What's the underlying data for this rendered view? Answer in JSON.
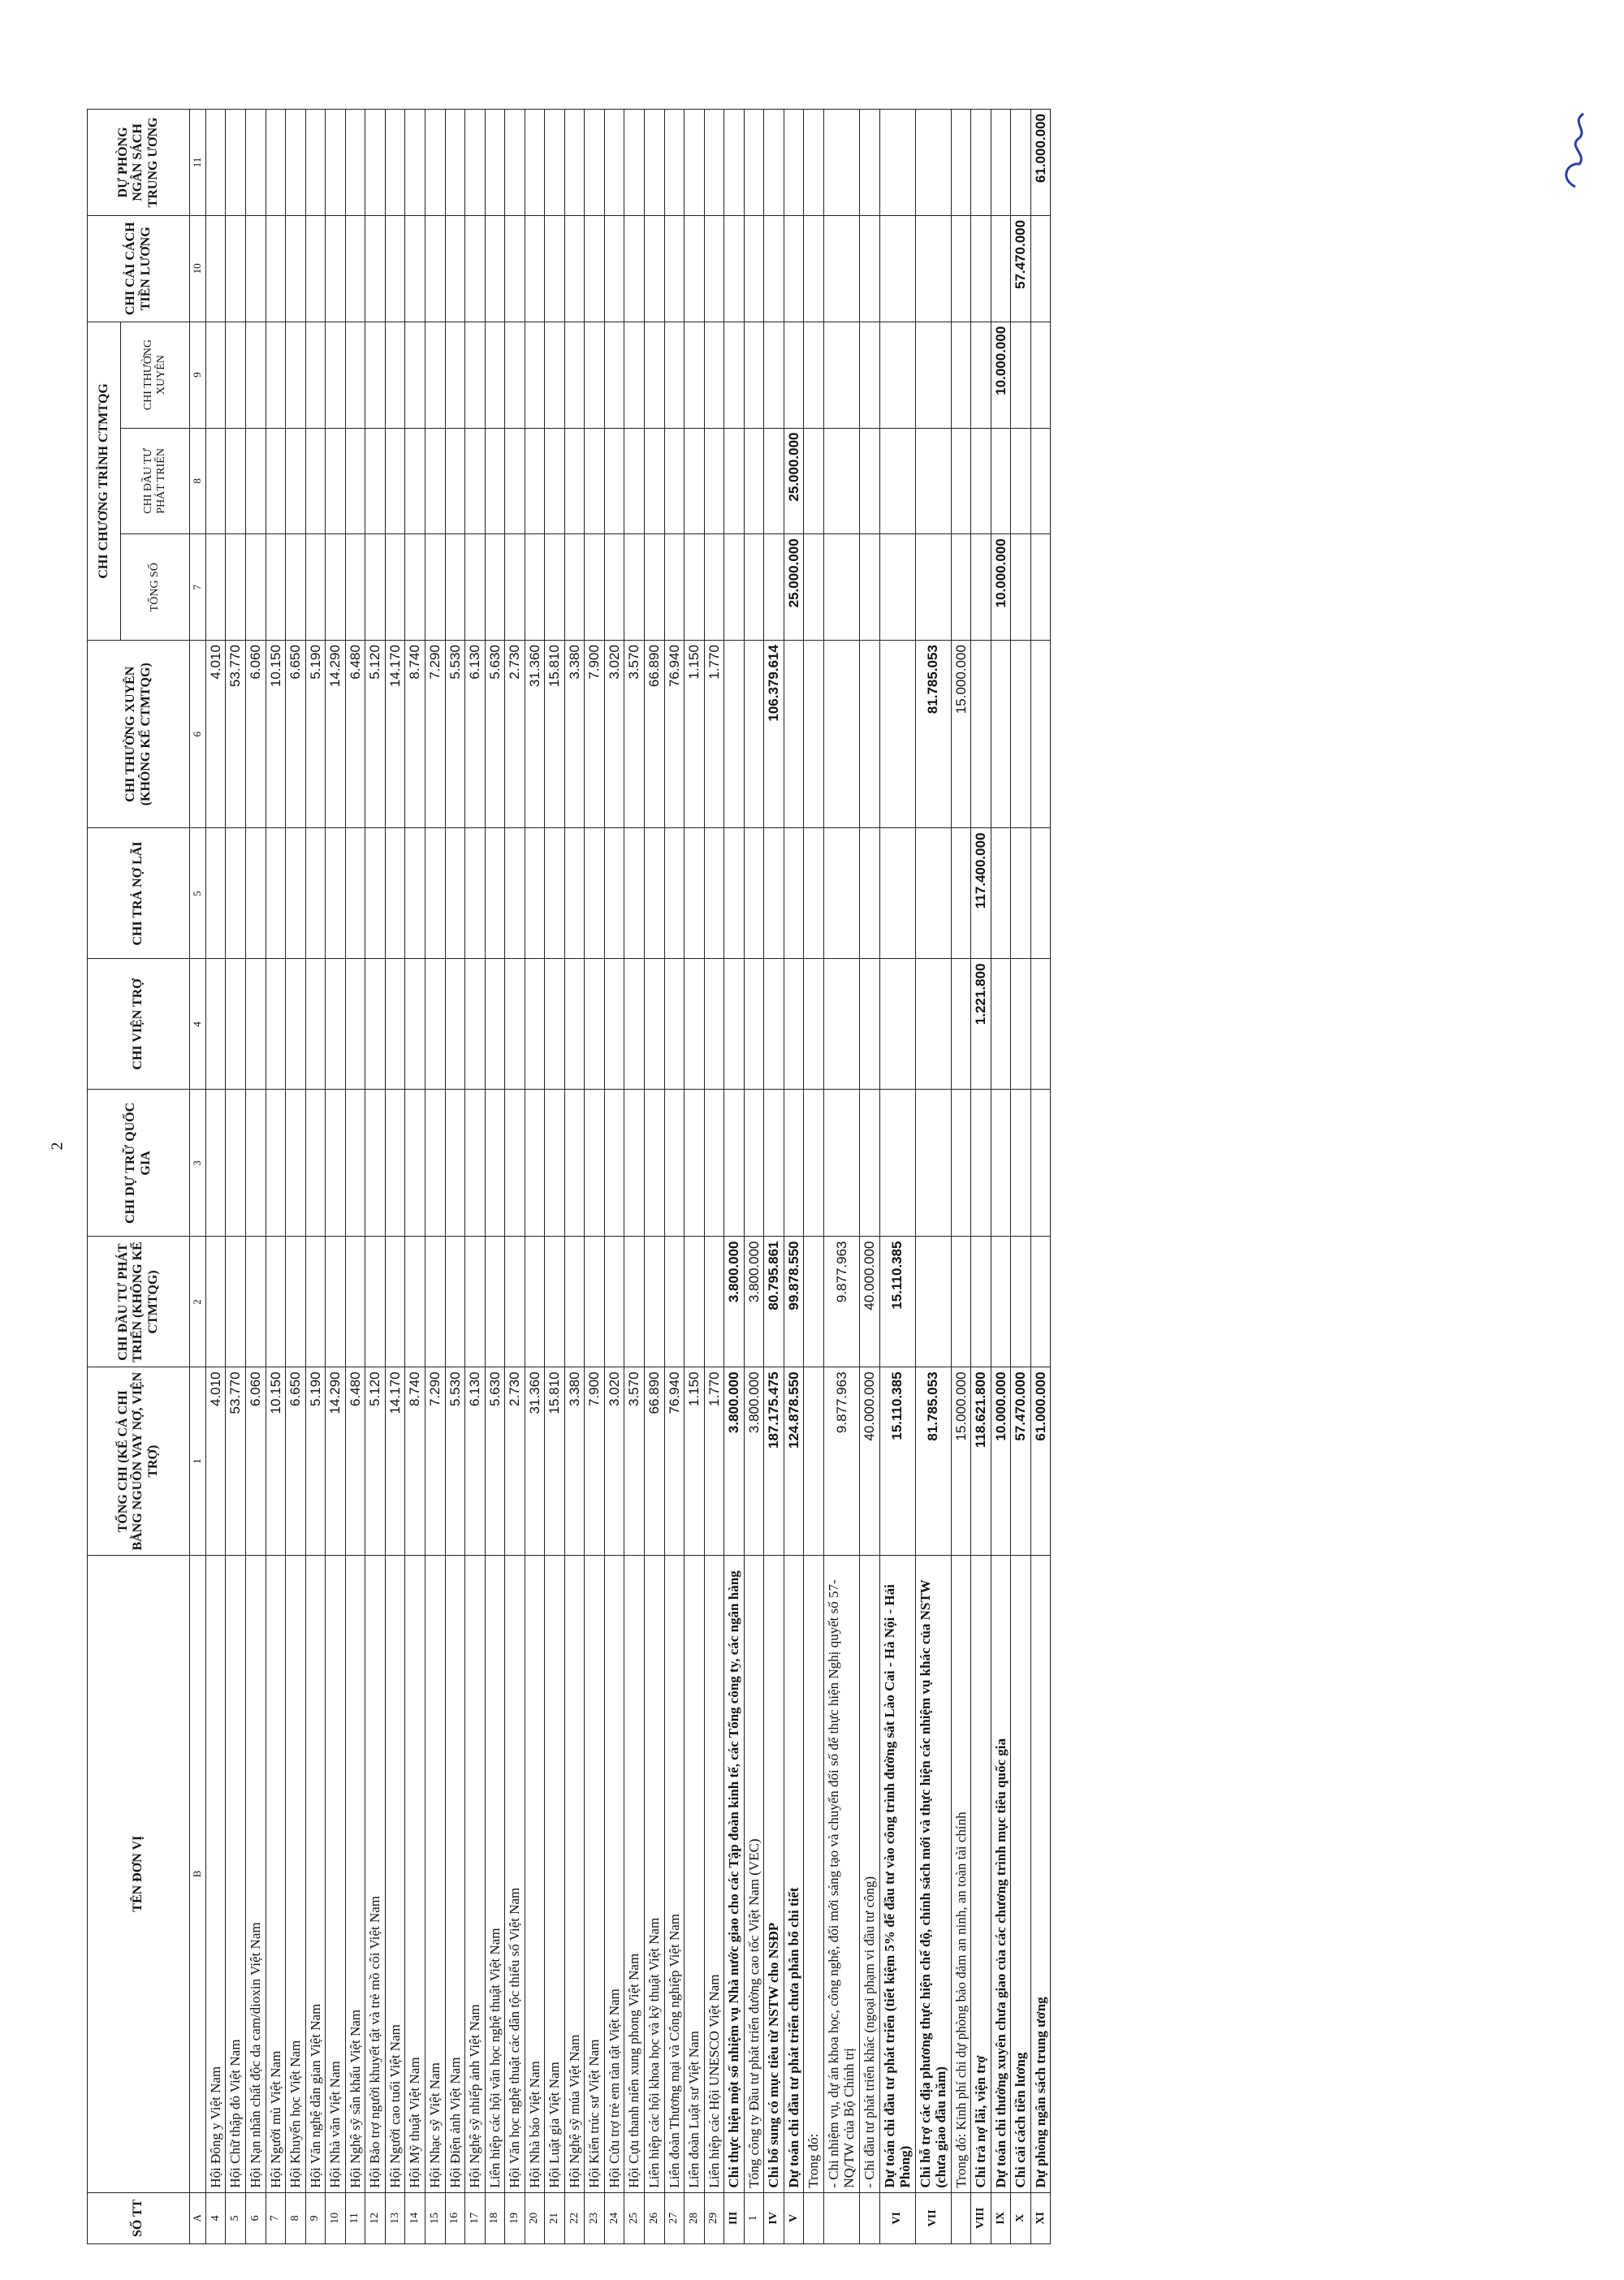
{
  "page_number": "2",
  "table": {
    "header_top": [
      "SỐ TT",
      "TÊN ĐƠN VỊ",
      "TỔNG CHI (KỂ CẢ CHI BẰNG NGUỒN VAY NỢ, VIỆN TRỢ)",
      "CHI ĐẦU TƯ PHÁT TRIỂN (KHÔNG KỂ CTMTQG)",
      "CHI DỰ TRỮ QUỐC GIA",
      "CHI VIỆN TRỢ",
      "CHI TRẢ NỢ LÃI",
      "CHI THƯỜNG XUYÊN (KHÔNG KỂ CTMTQG)",
      "CHI CHƯƠNG TRÌNH CTMTQG",
      "CHI CẢI CÁCH TIỀN LƯƠNG",
      "DỰ PHÒNG NGÂN SÁCH TRUNG ƯƠNG"
    ],
    "header_sub": [
      "TỔNG SỐ",
      "CHI ĐẦU TƯ PHÁT TRIỂN",
      "CHI THƯỜNG XUYÊN"
    ],
    "rows": [
      [
        "A",
        "B",
        "1",
        "2",
        "3",
        "4",
        "5",
        "6",
        "7",
        "8",
        "9",
        "10",
        "11"
      ],
      [
        "4",
        "Hội Đông y Việt Nam",
        "4.010",
        null,
        null,
        null,
        null,
        "4.010",
        null,
        null,
        null,
        null,
        null
      ],
      [
        "5",
        "Hội Chữ thập đỏ Việt Nam",
        "53.770",
        null,
        null,
        null,
        null,
        "53.770",
        null,
        null,
        null,
        null,
        null
      ],
      [
        "6",
        "Hội Nạn nhân chất độc da cam/dioxin Việt Nam",
        "6.060",
        null,
        null,
        null,
        null,
        "6.060",
        null,
        null,
        null,
        null,
        null
      ],
      [
        "7",
        "Hội Người mù Việt Nam",
        "10.150",
        null,
        null,
        null,
        null,
        "10.150",
        null,
        null,
        null,
        null,
        null
      ],
      [
        "8",
        "Hội Khuyến học Việt Nam",
        "6.650",
        null,
        null,
        null,
        null,
        "6.650",
        null,
        null,
        null,
        null,
        null
      ],
      [
        "9",
        "Hội Văn nghệ dân gian Việt Nam",
        "5.190",
        null,
        null,
        null,
        null,
        "5.190",
        null,
        null,
        null,
        null,
        null
      ],
      [
        "10",
        "Hội Nhà văn Việt Nam",
        "14.290",
        null,
        null,
        null,
        null,
        "14.290",
        null,
        null,
        null,
        null,
        null
      ],
      [
        "11",
        "Hội Nghệ sỹ sân khấu Việt Nam",
        "6.480",
        null,
        null,
        null,
        null,
        "6.480",
        null,
        null,
        null,
        null,
        null
      ],
      [
        "12",
        "Hội Bảo trợ người khuyết tật và trẻ mồ côi Việt Nam",
        "5.120",
        null,
        null,
        null,
        null,
        "5.120",
        null,
        null,
        null,
        null,
        null
      ],
      [
        "13",
        "Hội Người cao tuổi Việt Nam",
        "14.170",
        null,
        null,
        null,
        null,
        "14.170",
        null,
        null,
        null,
        null,
        null
      ],
      [
        "14",
        "Hội Mỹ thuật Việt Nam",
        "8.740",
        null,
        null,
        null,
        null,
        "8.740",
        null,
        null,
        null,
        null,
        null
      ],
      [
        "15",
        "Hội Nhạc sỹ Việt Nam",
        "7.290",
        null,
        null,
        null,
        null,
        "7.290",
        null,
        null,
        null,
        null,
        null
      ],
      [
        "16",
        "Hội Điện ảnh Việt Nam",
        "5.530",
        null,
        null,
        null,
        null,
        "5.530",
        null,
        null,
        null,
        null,
        null
      ],
      [
        "17",
        "Hội Nghệ sỹ nhiếp ảnh Việt Nam",
        "6.130",
        null,
        null,
        null,
        null,
        "6.130",
        null,
        null,
        null,
        null,
        null
      ],
      [
        "18",
        "Liên hiệp các hội văn học nghệ thuật Việt Nam",
        "5.630",
        null,
        null,
        null,
        null,
        "5.630",
        null,
        null,
        null,
        null,
        null
      ],
      [
        "19",
        "Hội Văn học nghệ thuật các dân tộc thiểu số Việt Nam",
        "2.730",
        null,
        null,
        null,
        null,
        "2.730",
        null,
        null,
        null,
        null,
        null
      ],
      [
        "20",
        "Hội Nhà báo Việt Nam",
        "31.360",
        null,
        null,
        null,
        null,
        "31.360",
        null,
        null,
        null,
        null,
        null
      ],
      [
        "21",
        "Hội Luật gia Việt Nam",
        "15.810",
        null,
        null,
        null,
        null,
        "15.810",
        null,
        null,
        null,
        null,
        null
      ],
      [
        "22",
        "Hội Nghệ sỹ múa Việt Nam",
        "3.380",
        null,
        null,
        null,
        null,
        "3.380",
        null,
        null,
        null,
        null,
        null
      ],
      [
        "23",
        "Hội Kiến trúc sư Việt Nam",
        "7.900",
        null,
        null,
        null,
        null,
        "7.900",
        null,
        null,
        null,
        null,
        null
      ],
      [
        "24",
        "Hội Cứu trợ trẻ em tàn tật Việt Nam",
        "3.020",
        null,
        null,
        null,
        null,
        "3.020",
        null,
        null,
        null,
        null,
        null
      ],
      [
        "25",
        "Hội Cựu thanh niên xung phong Việt Nam",
        "3.570",
        null,
        null,
        null,
        null,
        "3.570",
        null,
        null,
        null,
        null,
        null
      ],
      [
        "26",
        "Liên hiệp các hội khoa học và kỹ thuật Việt Nam",
        "66.890",
        null,
        null,
        null,
        null,
        "66.890",
        null,
        null,
        null,
        null,
        null
      ],
      [
        "27",
        "Liên đoàn Thương mại và Công nghiệp Việt Nam",
        "76.940",
        null,
        null,
        null,
        null,
        "76.940",
        null,
        null,
        null,
        null,
        null
      ],
      [
        "28",
        "Liên đoàn Luật sư Việt Nam",
        "1.150",
        null,
        null,
        null,
        null,
        "1.150",
        null,
        null,
        null,
        null,
        null
      ],
      [
        "29",
        "Liên hiệp các Hội UNESCO Việt Nam",
        "1.770",
        null,
        null,
        null,
        null,
        "1.770",
        null,
        null,
        null,
        null,
        null
      ],
      [
        "III",
        "Chi thực hiện một số nhiệm vụ Nhà nước giao cho các Tập đoàn kinh tế, các Tổng công ty, các ngân hàng",
        "3.800.000",
        "3.800.000",
        null,
        null,
        null,
        null,
        null,
        null,
        null,
        null,
        null
      ],
      [
        "1",
        "Tổng công ty Đầu tư phát triển đường cao tốc Việt Nam (VEC)",
        "3.800.000",
        "3.800.000",
        null,
        null,
        null,
        null,
        null,
        null,
        null,
        null,
        null
      ],
      [
        "IV",
        "Chi bổ sung có mục tiêu từ NSTW cho NSĐP",
        "187.175.475",
        "80.795.861",
        null,
        null,
        null,
        "106.379.614",
        null,
        null,
        null,
        null,
        null
      ],
      [
        "V",
        "Dự toán chi đầu tư phát triển chưa phân bổ chi tiết",
        "124.878.550",
        "99.878.550",
        null,
        null,
        null,
        null,
        "25.000.000",
        "25.000.000",
        null,
        null,
        null
      ],
      [
        null,
        "Trong đó:",
        null,
        null,
        null,
        null,
        null,
        null,
        null,
        null,
        null,
        null,
        null
      ],
      [
        null,
        "- Chi nhiệm vụ, dự án khoa học, công nghệ, đổi mới sáng tạo và chuyển đổi số để thực hiện Nghị quyết số 57-NQ/TW của Bộ Chính trị",
        "9.877.963",
        "9.877.963",
        null,
        null,
        null,
        null,
        null,
        null,
        null,
        null,
        null
      ],
      [
        null,
        "- Chi đầu tư phát triển khác (ngoại phạm vi đầu tư công)",
        "40.000.000",
        "40.000.000",
        null,
        null,
        null,
        null,
        null,
        null,
        null,
        null,
        null
      ],
      [
        "VI",
        "Dự toán chi đầu tư phát triển (tiết kiệm 5% để đầu tư vào công trình đường sắt Lào Cai - Hà Nội - Hải Phòng)",
        "15.110.385",
        "15.110.385",
        null,
        null,
        null,
        null,
        null,
        null,
        null,
        null,
        null
      ],
      [
        "VII",
        "Chi hỗ trợ các địa phương thực hiện chế độ, chính sách mới và thực hiện các nhiệm vụ khác của NSTW (chưa giao đầu năm)",
        "81.785.053",
        null,
        null,
        null,
        null,
        "81.785.053",
        null,
        null,
        null,
        null,
        null
      ],
      [
        null,
        "Trong đó: Kinh phí chi dự phòng bảo đảm an ninh, an toàn tài chính",
        "15.000.000",
        null,
        null,
        null,
        null,
        "15.000.000",
        null,
        null,
        null,
        null,
        null
      ],
      [
        "VIII",
        "Chi trả nợ lãi, viện trợ",
        "118.621.800",
        null,
        null,
        "1.221.800",
        "117.400.000",
        null,
        null,
        null,
        null,
        null,
        null
      ],
      [
        "IX",
        "Dự toán chi thường xuyên chưa giao của các chương trình mục tiêu quốc gia",
        "10.000.000",
        null,
        null,
        null,
        null,
        null,
        "10.000.000",
        null,
        "10.000.000",
        null,
        null
      ],
      [
        "X",
        "Chi cải cách tiền lương",
        "57.470.000",
        null,
        null,
        null,
        null,
        null,
        null,
        null,
        null,
        "57.470.000",
        null
      ],
      [
        "XI",
        "Dự phòng ngân sách trung ương",
        "61.000.000",
        null,
        null,
        null,
        null,
        null,
        null,
        null,
        null,
        null,
        "61.000.000"
      ]
    ]
  }
}
